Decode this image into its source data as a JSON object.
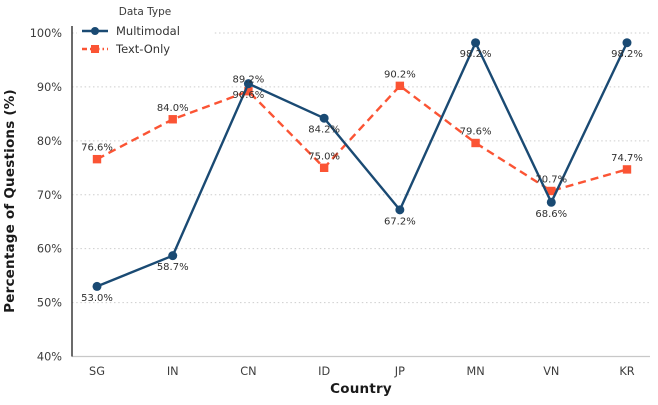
{
  "figure": {
    "background": "#ffffff"
  },
  "legend": {
    "title": "Data Type"
  },
  "chart_data": {
    "type": "line",
    "title": "",
    "xlabel": "Country",
    "ylabel": "Percentage of Questions (%)",
    "categories": [
      "SG",
      "IN",
      "CN",
      "ID",
      "JP",
      "MN",
      "VN",
      "KR"
    ],
    "series": [
      {
        "name": "Multimodal",
        "color": "#1A4A73",
        "line": "solid",
        "marker": "circle",
        "label_position": "below",
        "values": [
          53.0,
          58.7,
          90.6,
          84.2,
          67.2,
          98.2,
          68.6,
          98.2
        ]
      },
      {
        "name": "Text-Only",
        "color": "#FB5434",
        "line": "dashed",
        "marker": "square",
        "label_position": "above",
        "values": [
          76.6,
          84.0,
          89.2,
          75.0,
          90.2,
          79.6,
          70.7,
          74.7
        ]
      }
    ],
    "ylim": [
      40,
      100
    ],
    "yticks": [
      40,
      50,
      60,
      70,
      80,
      90,
      100
    ],
    "ytick_suffix": "%",
    "grid": "horizontal-dotted",
    "legend_position": "upper-left",
    "label_color": "#303030",
    "tick_color": "#3d3d3d",
    "axis_color": "#3a3a3a",
    "grid_color": "#cdcdcd",
    "bottom_spine_color": "#c8c8c8"
  }
}
